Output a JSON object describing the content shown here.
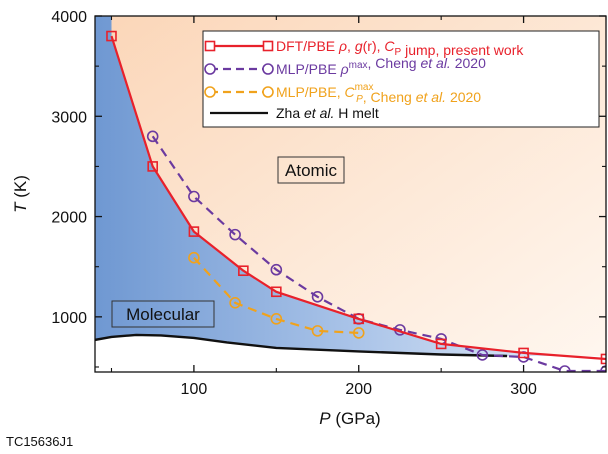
{
  "chart_data": {
    "type": "line",
    "xlabel": "P (GPa)",
    "ylabel": "T (K)",
    "xlim": [
      40,
      350
    ],
    "ylim": [
      450,
      4000
    ],
    "x_ticks": [
      100,
      200,
      300
    ],
    "y_ticks": [
      1000,
      2000,
      3000,
      4000
    ],
    "grid": false,
    "legend_position": "top-right",
    "region_labels": {
      "atomic": "Atomic",
      "molecular": "Molecular"
    },
    "figure_id": "TC15636J1",
    "colors": {
      "red": "#e8212b",
      "purple": "#6b3aa0",
      "orange": "#f0a21c",
      "black": "#111111",
      "atomic_bg": "#fbdcc3",
      "molecular_bg": "#7ea2d6"
    },
    "series": [
      {
        "name": "DFT/PBE ρ, g(r), CP jump, present work",
        "legend_parts": [
          {
            "t": "DFT/PBE "
          },
          {
            "t": "ρ",
            "i": true
          },
          {
            "t": ", "
          },
          {
            "t": "g",
            "i": true
          },
          {
            "t": "(r)",
            "i": false
          },
          {
            "t": ", "
          },
          {
            "t": "C",
            "i": true
          },
          {
            "t": "P",
            "sub": true
          },
          {
            "t": " jump, present work"
          }
        ],
        "color": "#e8212b",
        "line": "solid",
        "marker": "square",
        "x": [
          50,
          75,
          100,
          130,
          150,
          200,
          250,
          300,
          350
        ],
        "y": [
          3800,
          2500,
          1850,
          1460,
          1250,
          980,
          730,
          640,
          580
        ]
      },
      {
        "name": "MLP/PBE ρmax, Cheng et al. 2020",
        "legend_parts": [
          {
            "t": "MLP/PBE "
          },
          {
            "t": "ρ",
            "i": true
          },
          {
            "t": "max",
            "sup": true
          },
          {
            "t": ", Cheng "
          },
          {
            "t": "et al.",
            "i": true
          },
          {
            "t": " 2020"
          }
        ],
        "color": "#6b3aa0",
        "line": "dashed",
        "marker": "circle",
        "x": [
          75,
          100,
          125,
          150,
          175,
          200,
          225,
          250,
          275,
          300,
          325,
          350
        ],
        "y": [
          2800,
          2200,
          1820,
          1470,
          1200,
          980,
          870,
          780,
          620,
          600,
          460,
          460
        ]
      },
      {
        "name": "MLP/PBE, CPmax, Cheng et al. 2020",
        "legend_parts": [
          {
            "t": "MLP/PBE, "
          },
          {
            "t": "C",
            "i": true
          },
          {
            "t": "P",
            "subsup": "max"
          },
          {
            "t": ", Cheng "
          },
          {
            "t": "et al.",
            "i": true
          },
          {
            "t": " 2020"
          }
        ],
        "color": "#f0a21c",
        "line": "dashed",
        "marker": "circle",
        "x": [
          100,
          125,
          150,
          175,
          200
        ],
        "y": [
          1590,
          1140,
          980,
          860,
          840
        ]
      },
      {
        "name": "Zha et al. H melt",
        "legend_parts": [
          {
            "t": "Zha "
          },
          {
            "t": "et al.",
            "i": true
          },
          {
            "t": " H melt"
          }
        ],
        "color": "#111111",
        "line": "solid",
        "marker": "none",
        "x": [
          40,
          50,
          65,
          80,
          100,
          120,
          150,
          200,
          250,
          290
        ],
        "y": [
          770,
          800,
          820,
          815,
          790,
          745,
          690,
          655,
          625,
          610
        ]
      }
    ]
  }
}
